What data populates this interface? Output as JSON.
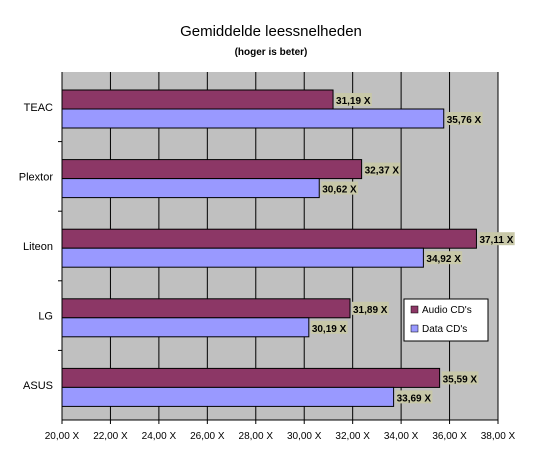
{
  "chart_data": {
    "type": "bar",
    "orientation": "horizontal",
    "title": "Gemiddelde leessnelheden",
    "subtitle": "(hoger is beter)",
    "categories": [
      "TEAC",
      "Plextor",
      "Liteon",
      "LG",
      "ASUS"
    ],
    "series": [
      {
        "name": "Audio CD's",
        "color": "#8c3766",
        "values": [
          31.19,
          32.37,
          37.11,
          31.89,
          35.59
        ],
        "labels": [
          "31,19 X",
          "32,37 X",
          "37,11 X",
          "31,89 X",
          "35,59 X"
        ]
      },
      {
        "name": "Data CD's",
        "color": "#9999ff",
        "values": [
          35.76,
          30.62,
          34.92,
          30.19,
          33.69
        ],
        "labels": [
          "35,76 X",
          "30,62 X",
          "34,92 X",
          "30,19 X",
          "33,69 X"
        ]
      }
    ],
    "xlim": [
      20,
      38
    ],
    "ticks": [
      20,
      22,
      24,
      26,
      28,
      30,
      32,
      34,
      36,
      38
    ],
    "tick_labels": [
      "20,00 X",
      "22,00 X",
      "24,00 X",
      "26,00 X",
      "28,00 X",
      "30,00 X",
      "32,00 X",
      "34,00 X",
      "36,00 X",
      "38,00 X"
    ],
    "grid": "vertical",
    "legend_position": "right",
    "plot_background": "#c0c0c0"
  }
}
